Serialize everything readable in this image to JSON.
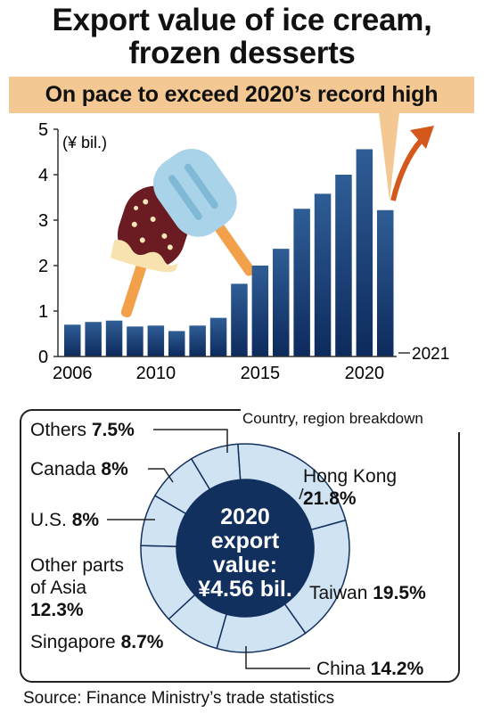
{
  "title_line1": "Export value of ice cream,",
  "title_line2": "frozen desserts",
  "banner": "On pace to exceed 2020’s record high",
  "colors": {
    "bar_top": "#2f5d96",
    "bar_bottom": "#0d2a5c",
    "pie_fill": "#cfe3f2",
    "center": "#11305e",
    "arrow": "#d4581c",
    "banner": "#f4c892"
  },
  "chart_data": [
    {
      "type": "bar",
      "ylabel": "(¥ bil.)",
      "ylim": [
        0,
        5
      ],
      "yticks": [
        "0",
        "1",
        "2",
        "3",
        "4",
        "5"
      ],
      "x": [
        2006,
        2007,
        2008,
        2009,
        2010,
        2011,
        2012,
        2013,
        2014,
        2015,
        2016,
        2017,
        2018,
        2019,
        2020,
        2021
      ],
      "xtick_labels": [
        "2006",
        "2010",
        "2015",
        "2020"
      ],
      "extra_label": "2021",
      "values": [
        0.7,
        0.76,
        0.79,
        0.66,
        0.68,
        0.56,
        0.68,
        0.85,
        1.6,
        2.0,
        2.37,
        3.25,
        3.58,
        4.0,
        4.56,
        3.22
      ]
    },
    {
      "type": "pie",
      "title": "Country, region breakdown",
      "center_lines": [
        "2020",
        "export",
        "value:",
        "¥4.56 bil."
      ],
      "slices": [
        {
          "name": "Hong Kong",
          "value": 21.8,
          "label": "21.8%"
        },
        {
          "name": "Taiwan",
          "value": 19.5,
          "label": "19.5%"
        },
        {
          "name": "China",
          "value": 14.2,
          "label": "14.2%"
        },
        {
          "name": "Singapore",
          "value": 8.7,
          "label": "8.7%"
        },
        {
          "name": "Other parts of Asia",
          "value": 12.3,
          "label": "12.3%"
        },
        {
          "name": "U.S.",
          "value": 8,
          "label": "8%"
        },
        {
          "name": "Canada",
          "value": 8,
          "label": "8%"
        },
        {
          "name": "Others",
          "value": 7.5,
          "label": "7.5%"
        }
      ]
    }
  ],
  "pie_labels": {
    "others_name": "Others",
    "others_pct": "7.5%",
    "canada_name": "Canada",
    "canada_pct": "8%",
    "us_name": "U.S.",
    "us_pct": "8%",
    "asia_line1": "Other parts",
    "asia_line2": "of Asia",
    "asia_pct": "12.3%",
    "singapore_name": "Singapore",
    "singapore_pct": "8.7%",
    "hk_name": "Hong Kong",
    "hk_pct": "21.8%",
    "taiwan_name": "Taiwan",
    "taiwan_pct": "19.5%",
    "china_name": "China",
    "china_pct": "14.2%"
  },
  "source": "Source: Finance Ministry’s trade statistics"
}
